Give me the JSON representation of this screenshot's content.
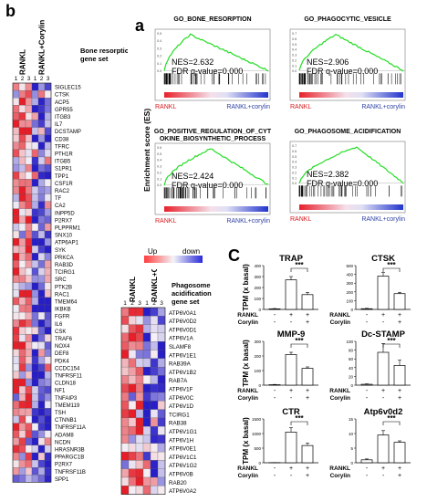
{
  "panel_letters": {
    "b": "b",
    "a": "a",
    "c": "C"
  },
  "heatmap_b": {
    "group1_label": "RANKL",
    "group2_label": "RANKL+Corylin",
    "replicates": [
      "1",
      "2",
      "3",
      "1",
      "2",
      "3"
    ],
    "gene_set_label_line1": "Bone resorption",
    "gene_set_label_line2": "gene set",
    "genes": [
      "SIGLEC15",
      "CTSK",
      "ACP5",
      "GPR55",
      "ITGB3",
      "IL7",
      "DCSTAMP",
      "CD38",
      "TFRC",
      "PTH1R",
      "ITGB5",
      "S1PR1",
      "TPP1",
      "CSF1R",
      "RAC2",
      "TF",
      "CA2",
      "INPP5D",
      "P2RX7",
      "PLPPRM1",
      "SNX10",
      "ATP6AP1",
      "SYK",
      "PRKCA",
      "RAB3D",
      "TCIRG1",
      "SRC",
      "PTK2B",
      "RAC1",
      "TMEM64",
      "IKBKB",
      "FGFR",
      "IL6",
      "CSK",
      "TRAF6",
      "NOX4",
      "DEF8",
      "PDK4",
      "CCDC154",
      "TNFRSF11",
      "CLDN18",
      "NF1",
      "TNFAIP3",
      "TMEM119",
      "TSH",
      "CTNNB1",
      "TNFRSF11A",
      "ADAM8",
      "NCDN",
      "HRASNR3B",
      "PPARGC1B",
      "P2RX7",
      "TNFRSF11B",
      "SPP1"
    ]
  },
  "heatmap_p": {
    "group1_label": "RANKL",
    "group2_label": "RANKL+Corylin",
    "replicates": [
      "1",
      "2",
      "3",
      "1",
      "2",
      "3"
    ],
    "gene_set_label_line1": "Phagosome",
    "gene_set_label_line2": "acidification",
    "gene_set_label_line3": "gene set",
    "genes": [
      "ATP6V0A1",
      "ATP6V0D2",
      "ATP6V0D1",
      "ATP6V1A",
      "SLAMF8",
      "ATP6V1E1",
      "RAB39A",
      "ATP6V1B2",
      "RAB7A",
      "ATP6V1F",
      "ATP6V0C",
      "ATP6V1D",
      "TCIRG1",
      "RAB38",
      "ATP6V1G1",
      "ATP6V1H",
      "ATP6V0E1",
      "ATP6V1C1",
      "ATP6V1G2",
      "ATP6V0B",
      "RAB20",
      "ATP6V0A2"
    ]
  },
  "color_legend": {
    "up": "Up",
    "down": "down",
    "high_color": "#d7191c",
    "low_color": "#2c3fa3"
  },
  "gsea": {
    "y_label": "Enrichment score (ES)",
    "panels": [
      {
        "title_line1": "GO_BONE_RESORPTION",
        "title_line2": "",
        "nes": "NES=2.632",
        "fdr": "FDR q-value=0.000",
        "left": "RANKL",
        "right": "RANKL+corylin",
        "yticks": [
          "0.5",
          "0.4",
          "0.3",
          "0.2",
          "0.1",
          "0.0"
        ]
      },
      {
        "title_line1": "GO_PHAGOCYTIC_VESICLE",
        "title_line2": "",
        "nes": "NES=2.906",
        "fdr": "FDR q-value=0.000",
        "left": "RANKL",
        "right": "RANKL+corylin",
        "yticks": [
          "0.7",
          "0.6",
          "0.5",
          "0.4",
          "0.3",
          "0.2",
          "0.1",
          "0.0"
        ]
      },
      {
        "title_line1": "GO_POSITIVE_REGULATION_OF_CYT",
        "title_line2": "OKINE_BIOSYNTHETIC_PROCESS",
        "nes": "NES=2.424",
        "fdr": "FDR q-value=0.000",
        "left": "RANKL",
        "right": "RANKL+corylin",
        "yticks": [
          "0.6",
          "0.5",
          "0.4",
          "0.3",
          "0.2",
          "0.1",
          "0.0"
        ]
      },
      {
        "title_line1": "GO_PHAGOSOME_ACIDIFICATION",
        "title_line2": "",
        "nes": "NES=2.382",
        "fdr": "FDR q-value=0.000",
        "left": "RANKL",
        "right": "RANKL+corylin",
        "yticks": [
          "0.7",
          "0.6",
          "0.5",
          "0.4",
          "0.3",
          "0.2",
          "0.1",
          "0.0"
        ]
      }
    ]
  },
  "chart_data": [
    {
      "type": "bar",
      "title": "TRAP",
      "ylabel": "TPM (x basal)",
      "categories": [
        "Control",
        "RANKL",
        "RANKL+Corylin"
      ],
      "values": [
        5,
        270,
        135
      ],
      "errors": [
        3,
        30,
        20
      ],
      "ylim": [
        0,
        400
      ],
      "yticks": [
        "0",
        "100",
        "200",
        "300",
        "400"
      ],
      "significance": "***"
    },
    {
      "type": "bar",
      "title": "CTSK",
      "ylabel": "",
      "categories": [
        "Control",
        "RANKL",
        "RANKL+Corylin"
      ],
      "values": [
        8,
        380,
        180
      ],
      "errors": [
        4,
        40,
        15
      ],
      "ylim": [
        0,
        500
      ],
      "yticks": [
        "0",
        "100",
        "200",
        "300",
        "400",
        "500"
      ],
      "significance": "***"
    },
    {
      "type": "bar",
      "title": "MMP-9",
      "ylabel": "TPM (x basal)",
      "categories": [
        "Control",
        "RANKL",
        "RANKL+Corylin"
      ],
      "values": [
        3,
        210,
        115
      ],
      "errors": [
        2,
        15,
        10
      ],
      "ylim": [
        0,
        300
      ],
      "yticks": [
        "0",
        "100",
        "200",
        "300"
      ],
      "significance": "***"
    },
    {
      "type": "bar",
      "title": "Dc-STAMP",
      "ylabel": "",
      "categories": [
        "Control",
        "RANKL",
        "RANKL+Corylin"
      ],
      "values": [
        2,
        75,
        45
      ],
      "errors": [
        1,
        20,
        12
      ],
      "ylim": [
        0,
        100
      ],
      "yticks": [
        "0",
        "20",
        "40",
        "60",
        "80",
        "100"
      ],
      "significance": "***"
    },
    {
      "type": "bar",
      "title": "CTR",
      "ylabel": "TPM (x basal)",
      "categories": [
        "Control",
        "RANKL",
        "RANKL+Corylin"
      ],
      "values": [
        5,
        1050,
        590
      ],
      "errors": [
        3,
        150,
        80
      ],
      "ylim": [
        0,
        1500
      ],
      "yticks": [
        "0",
        "500",
        "1000",
        "1500"
      ],
      "significance": "***"
    },
    {
      "type": "bar",
      "title": "Atp6v0d2",
      "ylabel": "",
      "categories": [
        "Control",
        "RANKL",
        "RANKL+Corylin"
      ],
      "values": [
        1,
        9.5,
        7
      ],
      "errors": [
        0.3,
        1.5,
        0.5
      ],
      "ylim": [
        0,
        15
      ],
      "yticks": [
        "0",
        "5",
        "10",
        "15"
      ],
      "significance": "***"
    }
  ],
  "bar_xlabels": {
    "row1": "RANKL",
    "row2": "Corylin",
    "row1_marks": [
      "-",
      "+",
      "+"
    ],
    "row2_marks": [
      "-",
      "-",
      "+"
    ]
  }
}
